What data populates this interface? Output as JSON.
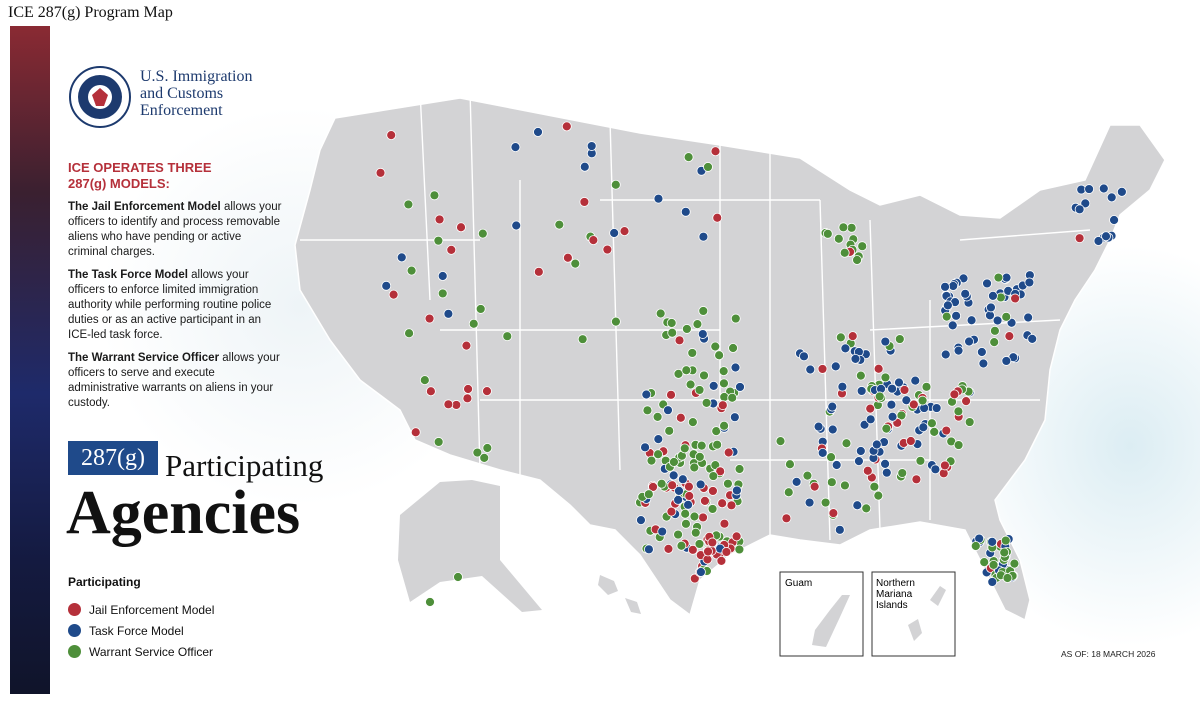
{
  "page_title": "ICE 287(g) Program Map",
  "logo": {
    "lines": [
      "U.S. Immigration",
      "and Customs",
      "Enforcement"
    ]
  },
  "intro": {
    "heading": [
      "ICE OPERATES THREE",
      "287(g) MODELS:"
    ],
    "models": [
      {
        "lead": "The Jail Enforcement Model",
        "text": "allows your officers to identify and process removable aliens who have pending or active criminal charges."
      },
      {
        "lead": "The Task Force Model",
        "text": "allows your officers to enforce limited immigration authority while performing routine police duties or as an active participant in an ICE-led task force."
      },
      {
        "lead": "The Warrant Service Officer",
        "text": "allows your officers to serve and execute administrative warrants on aliens in your custody."
      }
    ]
  },
  "headline": {
    "badge": "287(g)",
    "line1": "Participating",
    "line2": "Agencies"
  },
  "legend": {
    "title": "Participating",
    "items": [
      {
        "label": "Jail Enforcement Model",
        "color": "#b5303a"
      },
      {
        "label": "Task Force Model",
        "color": "#1f4a8a"
      },
      {
        "label": "Warrant Service Officer",
        "color": "#4e8f3a"
      }
    ]
  },
  "insets": [
    {
      "label": "Guam"
    },
    {
      "label": "Northern Mariana Islands"
    }
  ],
  "as_of": "AS OF: 18 MARCH 2026"
}
